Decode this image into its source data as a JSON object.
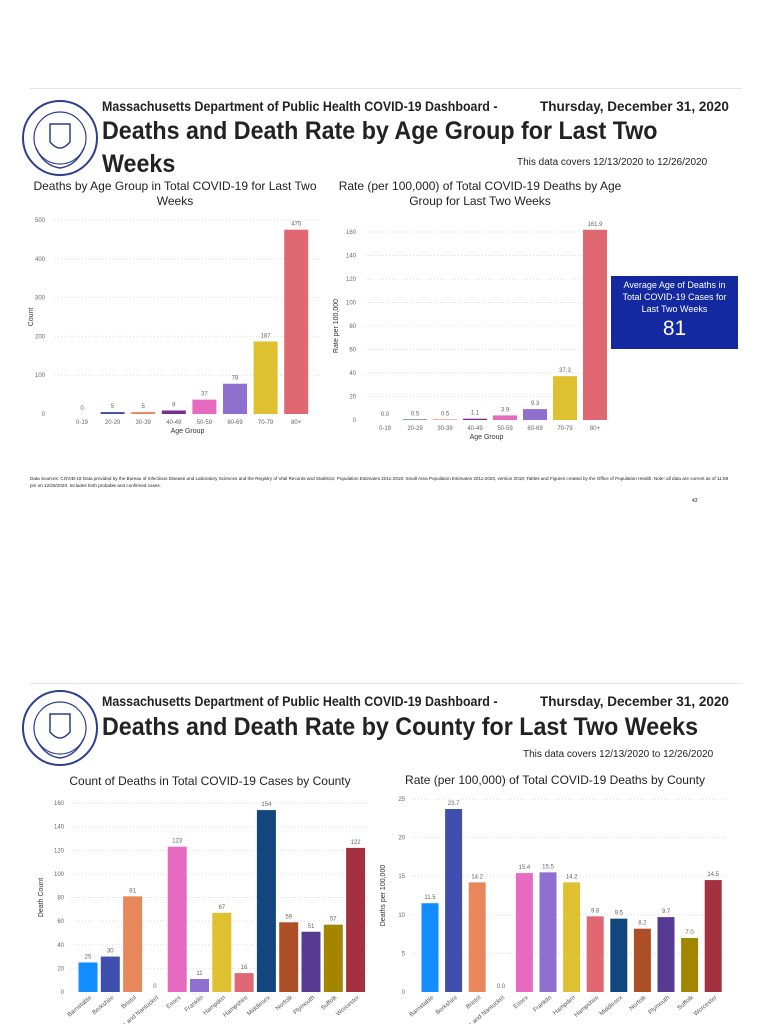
{
  "slide1": {
    "header": "Massachusetts Department of Public Health COVID-19 Dashboard -",
    "date": "Thursday, December 31, 2020",
    "title_line1": "Deaths and Death Rate by Age Group for Last Two",
    "title_line2": "Weeks",
    "covers": "This data covers 12/13/2020 to 12/26/2020",
    "kpi": {
      "label": "Average Age of Deaths in Total COVID-19 Cases for Last Two Weeks",
      "value": "81"
    },
    "footnote": "Data Sources: COVID-19 Data provided by the Bureau of Infectious Disease and Laboratory Sciences and the Registry of Vital Records and Statistics; Population Estimates 2011-2018: Small Area Population Estimates 2011-2020, version 2018; Tables and Figures created by the Office of Population Health. Note: all data are current as of 11:59 pm on 12/29/2020. Includes both probable and confirmed cases.",
    "page_number": "43"
  },
  "slide2": {
    "header": "Massachusetts Department of Public Health COVID-19 Dashboard -",
    "date": "Thursday, December 31, 2020",
    "title": "Deaths and Death Rate by County for Last Two Weeks",
    "covers": "This data covers 12/13/2020 to 12/26/2020"
  },
  "logo_text": "Commonwealth of Massachusetts Department of Public Health",
  "chart_data": [
    {
      "type": "bar",
      "title": "Deaths by Age Group in Total COVID-19 for Last Two Weeks",
      "xlabel": "Age Group",
      "ylabel": "Count",
      "categories": [
        "0-19",
        "20-29",
        "30-39",
        "40-49",
        "50-59",
        "60-69",
        "70-79",
        "80+"
      ],
      "values": [
        0,
        5,
        5,
        9,
        37,
        78,
        187,
        475
      ],
      "labels": [
        "0",
        "5",
        "5",
        "9",
        "37",
        "78",
        "187",
        "475"
      ],
      "yticks": [
        0,
        100,
        200,
        300,
        400,
        500
      ],
      "ylim": [
        0,
        500
      ],
      "colors": [
        "#118dff",
        "#3f4fb0",
        "#e8875c",
        "#7b2d8e",
        "#e66ac0",
        "#8f70cf",
        "#dfc030",
        "#e06872"
      ],
      "grid": true
    },
    {
      "type": "bar",
      "title": "Rate (per 100,000) of Total COVID-19 Deaths by Age Group for Last Two Weeks",
      "xlabel": "Age Group",
      "ylabel": "Rate per 100,000",
      "categories": [
        "0-19",
        "20-29",
        "30-39",
        "40-49",
        "50-59",
        "60-69",
        "70-79",
        "80+"
      ],
      "values": [
        0.0,
        0.5,
        0.5,
        1.1,
        3.9,
        9.3,
        37.3,
        161.9
      ],
      "labels": [
        "0.0",
        "0.5",
        "0.5",
        "1.1",
        "3.9",
        "9.3",
        "37.3",
        "161.9"
      ],
      "yticks": [
        0,
        20,
        40,
        60,
        80,
        100,
        120,
        140,
        160
      ],
      "ylim": [
        0,
        165
      ],
      "colors": [
        "#118dff",
        "#3f4fb0",
        "#e8875c",
        "#7b2d8e",
        "#e66ac0",
        "#8f70cf",
        "#dfc030",
        "#e06872"
      ],
      "grid": true
    },
    {
      "type": "bar",
      "title": "Count of Deaths in Total COVID-19 Cases by County",
      "xlabel": "",
      "ylabel": "Death Count",
      "categories": [
        "Barnstable",
        "Berkshire",
        "Bristol",
        "Dukes and Nantucket",
        "Essex",
        "Franklin",
        "Hampden",
        "Hampshire",
        "Middlesex",
        "Norfolk",
        "Plymouth",
        "Suffolk",
        "Worcester"
      ],
      "values": [
        25,
        30,
        81,
        0,
        123,
        11,
        67,
        16,
        154,
        59,
        51,
        57,
        122
      ],
      "labels": [
        "25",
        "30",
        "81",
        "0",
        "123",
        "11",
        "67",
        "16",
        "154",
        "59",
        "51",
        "57",
        "122"
      ],
      "yticks": [
        0,
        20,
        40,
        60,
        80,
        100,
        120,
        140,
        160
      ],
      "ylim": [
        0,
        160
      ],
      "colors": [
        "#118dff",
        "#3f4fb0",
        "#e8875c",
        "#cccccc",
        "#e66ac0",
        "#8f70cf",
        "#dfc030",
        "#e06872",
        "#12467e",
        "#ad4f26",
        "#573b92",
        "#a38600",
        "#a3313f"
      ],
      "grid": true
    },
    {
      "type": "bar",
      "title": "Rate (per 100,000) of Total COVID-19 Deaths by County",
      "xlabel": "",
      "ylabel": "Deaths per 100,000",
      "categories": [
        "Barnstable",
        "Berkshire",
        "Bristol",
        "Dukes and Nantucket",
        "Essex",
        "Franklin",
        "Hampden",
        "Hampshire",
        "Middlesex",
        "Norfolk",
        "Plymouth",
        "Suffolk",
        "Worcester"
      ],
      "values": [
        11.5,
        23.7,
        14.2,
        0.0,
        15.4,
        15.5,
        14.2,
        9.8,
        9.5,
        8.2,
        9.7,
        7.0,
        14.5
      ],
      "labels": [
        "11.5",
        "23.7",
        "14.2",
        "0.0",
        "15.4",
        "15.5",
        "14.2",
        "9.8",
        "9.5",
        "8.2",
        "9.7",
        "7.0",
        "14.5"
      ],
      "yticks": [
        0,
        5,
        10,
        15,
        20,
        25
      ],
      "ylim": [
        0,
        25
      ],
      "colors": [
        "#118dff",
        "#3f4fb0",
        "#e8875c",
        "#cccccc",
        "#e66ac0",
        "#8f70cf",
        "#dfc030",
        "#e06872",
        "#12467e",
        "#ad4f26",
        "#573b92",
        "#a38600",
        "#a3313f"
      ],
      "grid": true
    }
  ]
}
